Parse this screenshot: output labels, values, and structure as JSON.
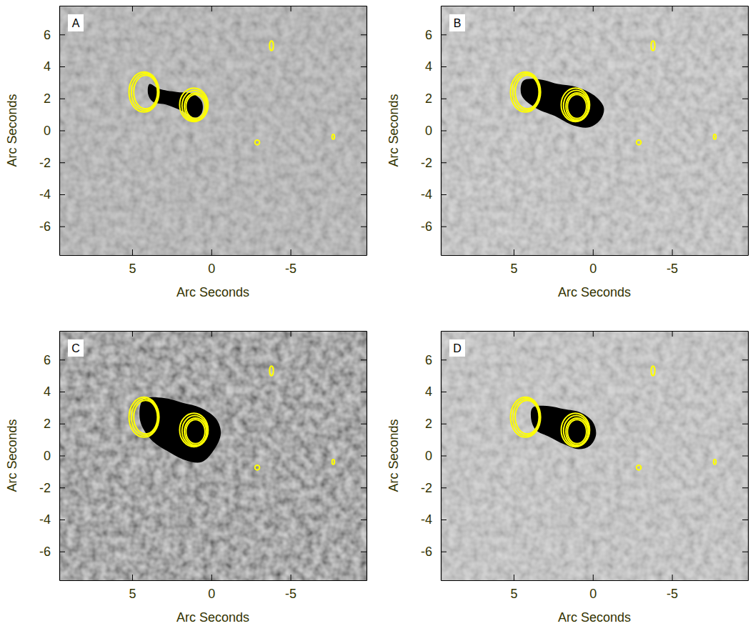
{
  "chart_data": [
    {
      "type": "image",
      "panel": "A",
      "xlabel": "Arc Seconds",
      "ylabel": "Arc Seconds",
      "xlim": [
        9.6,
        -9.8
      ],
      "ylim": [
        -7.8,
        7.8
      ],
      "xticks": [
        5,
        0,
        -5
      ],
      "yticks": [
        -6,
        -4,
        -2,
        0,
        2,
        4,
        6
      ],
      "color": "#ffff00",
      "regions": [
        {
          "x": [
            3.9,
            3.3,
            2.2,
            1.2,
            0.6,
            0.6,
            1.0,
            1.8,
            2.8,
            3.7,
            4.0
          ],
          "y": [
            2.9,
            2.6,
            2.4,
            2.3,
            1.8,
            1.1,
            0.8,
            1.2,
            1.6,
            1.8,
            2.3
          ]
        }
      ],
      "contours": [
        {
          "x": 4.15,
          "y": 2.4,
          "rx": 0.75,
          "ry": 1.05
        },
        {
          "x": 4.2,
          "y": 2.4,
          "rx": 0.85,
          "ry": 1.15
        },
        {
          "x": 4.25,
          "y": 2.4,
          "rx": 0.95,
          "ry": 1.25
        },
        {
          "x": 1.0,
          "y": 1.5,
          "rx": 0.6,
          "ry": 0.75
        },
        {
          "x": 1.0,
          "y": 1.5,
          "rx": 0.7,
          "ry": 0.85
        },
        {
          "x": 1.05,
          "y": 1.55,
          "rx": 0.8,
          "ry": 0.95
        },
        {
          "x": 1.1,
          "y": 1.6,
          "rx": 0.9,
          "ry": 1.05
        },
        {
          "x": -3.8,
          "y": 5.3,
          "rx": 0.12,
          "ry": 0.3
        },
        {
          "x": -2.9,
          "y": -0.75,
          "rx": 0.15,
          "ry": 0.15
        },
        {
          "x": -7.7,
          "y": -0.4,
          "rx": 0.08,
          "ry": 0.15
        }
      ]
    },
    {
      "type": "image",
      "panel": "B",
      "xlabel": "Arc Seconds",
      "ylabel": "Arc Seconds",
      "xlim": [
        9.6,
        -9.8
      ],
      "ylim": [
        -7.8,
        7.8
      ],
      "xticks": [
        5,
        0,
        -5
      ],
      "yticks": [
        -6,
        -4,
        -2,
        0,
        2,
        4,
        6
      ],
      "color": "#ffff00",
      "regions": [
        {
          "x": [
            4.4,
            3.4,
            2.2,
            1.0,
            -0.2,
            -0.7,
            -0.5,
            0.2,
            1.2,
            2.4,
            3.6,
            4.5
          ],
          "y": [
            3.1,
            3.2,
            2.9,
            2.7,
            2.1,
            1.4,
            0.7,
            0.2,
            0.3,
            0.9,
            1.4,
            2.2
          ]
        }
      ],
      "contours": [
        {
          "x": 4.15,
          "y": 2.4,
          "rx": 0.75,
          "ry": 1.05
        },
        {
          "x": 4.2,
          "y": 2.4,
          "rx": 0.85,
          "ry": 1.15
        },
        {
          "x": 4.25,
          "y": 2.4,
          "rx": 0.95,
          "ry": 1.25
        },
        {
          "x": 1.0,
          "y": 1.5,
          "rx": 0.6,
          "ry": 0.75
        },
        {
          "x": 1.0,
          "y": 1.5,
          "rx": 0.7,
          "ry": 0.85
        },
        {
          "x": 1.05,
          "y": 1.55,
          "rx": 0.8,
          "ry": 0.95
        },
        {
          "x": 1.1,
          "y": 1.6,
          "rx": 0.9,
          "ry": 1.05
        },
        {
          "x": -3.8,
          "y": 5.3,
          "rx": 0.12,
          "ry": 0.3
        },
        {
          "x": -2.9,
          "y": -0.75,
          "rx": 0.15,
          "ry": 0.15
        },
        {
          "x": -7.7,
          "y": -0.4,
          "rx": 0.08,
          "ry": 0.15
        }
      ]
    },
    {
      "type": "image",
      "panel": "C",
      "xlabel": "Arc Seconds",
      "ylabel": "Arc Seconds",
      "xlim": [
        9.6,
        -9.8
      ],
      "ylim": [
        -7.8,
        7.8
      ],
      "xticks": [
        5,
        0,
        -5
      ],
      "yticks": [
        -6,
        -4,
        -2,
        0,
        2,
        4,
        6
      ],
      "color": "#ffff00",
      "regions": [
        {
          "x": [
            4.3,
            3.0,
            1.8,
            0.7,
            -0.3,
            -0.6,
            -0.2,
            0.6,
            1.6,
            2.8,
            3.8,
            4.5
          ],
          "y": [
            3.5,
            3.6,
            3.3,
            3.0,
            2.3,
            1.4,
            0.4,
            -0.4,
            -0.3,
            0.3,
            1.0,
            2.2
          ]
        }
      ],
      "contours": [
        {
          "x": 4.15,
          "y": 2.4,
          "rx": 0.75,
          "ry": 1.05
        },
        {
          "x": 4.2,
          "y": 2.4,
          "rx": 0.85,
          "ry": 1.15
        },
        {
          "x": 4.25,
          "y": 2.4,
          "rx": 0.95,
          "ry": 1.25
        },
        {
          "x": 1.0,
          "y": 1.5,
          "rx": 0.6,
          "ry": 0.75
        },
        {
          "x": 1.0,
          "y": 1.5,
          "rx": 0.7,
          "ry": 0.85
        },
        {
          "x": 1.05,
          "y": 1.55,
          "rx": 0.8,
          "ry": 0.95
        },
        {
          "x": 1.1,
          "y": 1.6,
          "rx": 0.9,
          "ry": 1.05
        },
        {
          "x": -3.8,
          "y": 5.3,
          "rx": 0.12,
          "ry": 0.3
        },
        {
          "x": -2.9,
          "y": -0.75,
          "rx": 0.15,
          "ry": 0.15
        },
        {
          "x": -7.7,
          "y": -0.4,
          "rx": 0.08,
          "ry": 0.15
        }
      ]
    },
    {
      "type": "image",
      "panel": "D",
      "xlabel": "Arc Seconds",
      "ylabel": "Arc Seconds",
      "xlim": [
        9.6,
        -9.8
      ],
      "ylim": [
        -7.8,
        7.8
      ],
      "xticks": [
        5,
        0,
        -5
      ],
      "yticks": [
        -6,
        -4,
        -2,
        0,
        2,
        4,
        6
      ],
      "color": "#ffff00",
      "regions": [
        {
          "x": [
            3.8,
            2.8,
            1.8,
            0.8,
            0.0,
            -0.2,
            0.2,
            0.9,
            1.8,
            2.8,
            3.6,
            3.9
          ],
          "y": [
            3.0,
            3.1,
            2.9,
            2.7,
            2.1,
            1.3,
            0.6,
            0.4,
            0.7,
            1.2,
            1.6,
            2.3
          ]
        }
      ],
      "contours": [
        {
          "x": 4.15,
          "y": 2.4,
          "rx": 0.75,
          "ry": 1.05
        },
        {
          "x": 4.2,
          "y": 2.4,
          "rx": 0.85,
          "ry": 1.15
        },
        {
          "x": 4.25,
          "y": 2.4,
          "rx": 0.95,
          "ry": 1.25
        },
        {
          "x": 1.0,
          "y": 1.5,
          "rx": 0.6,
          "ry": 0.75
        },
        {
          "x": 1.0,
          "y": 1.5,
          "rx": 0.7,
          "ry": 0.85
        },
        {
          "x": 1.05,
          "y": 1.55,
          "rx": 0.8,
          "ry": 0.95
        },
        {
          "x": 1.1,
          "y": 1.6,
          "rx": 0.9,
          "ry": 1.05
        },
        {
          "x": -3.8,
          "y": 5.3,
          "rx": 0.12,
          "ry": 0.3
        },
        {
          "x": -2.9,
          "y": -0.75,
          "rx": 0.15,
          "ry": 0.15
        },
        {
          "x": -7.7,
          "y": -0.4,
          "rx": 0.08,
          "ry": 0.15
        }
      ]
    }
  ]
}
